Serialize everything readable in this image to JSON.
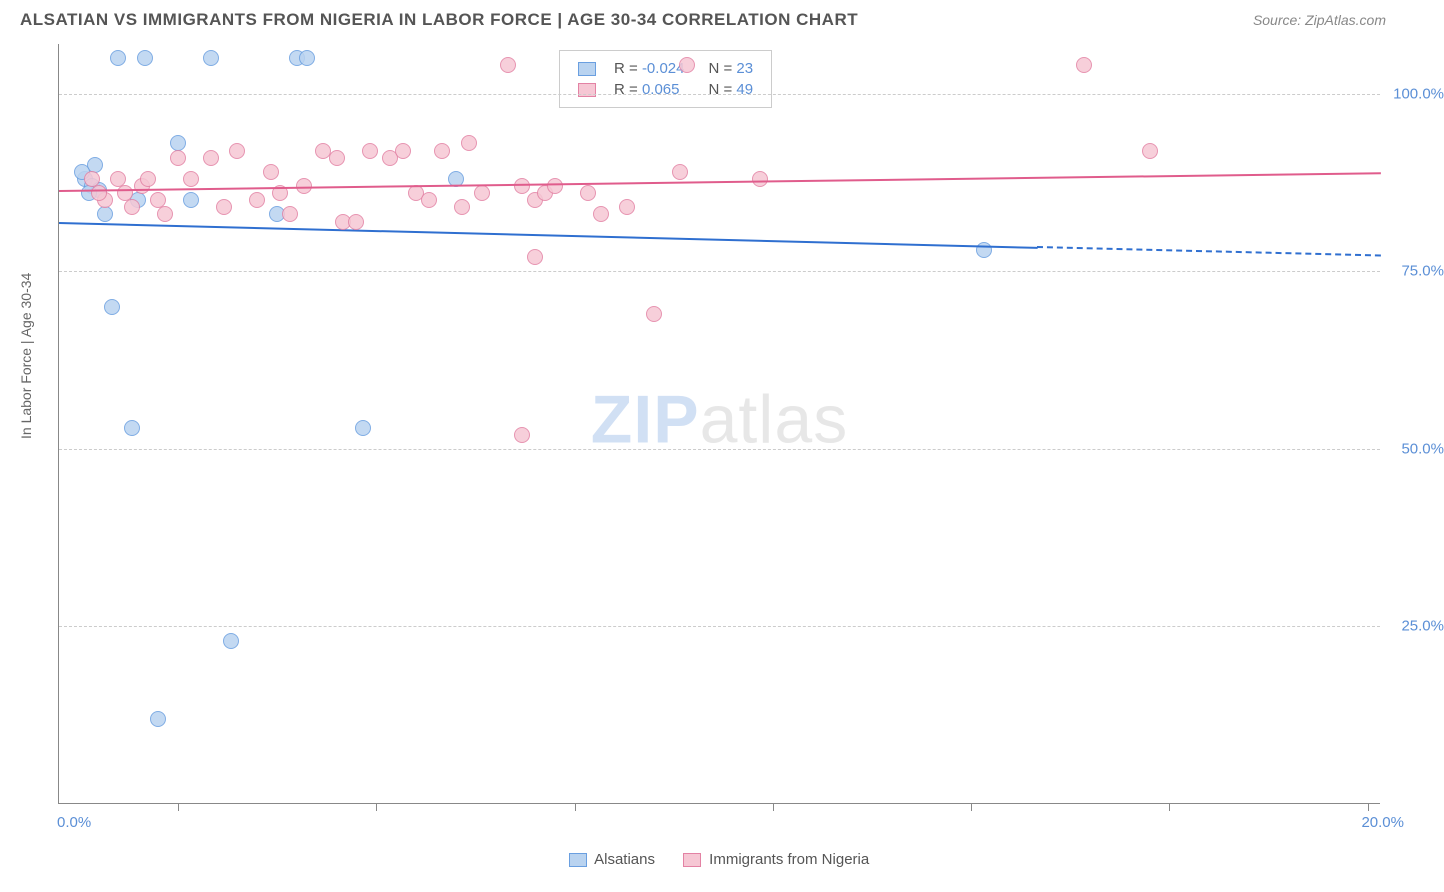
{
  "header": {
    "title": "ALSATIAN VS IMMIGRANTS FROM NIGERIA IN LABOR FORCE | AGE 30-34 CORRELATION CHART",
    "source": "Source: ZipAtlas.com"
  },
  "chart": {
    "type": "scatter",
    "ylabel": "In Labor Force | Age 30-34",
    "background_color": "#ffffff",
    "grid_color": "#cccccc",
    "axis_color": "#888888",
    "tick_label_color": "#5b8fd6",
    "label_fontsize": 14,
    "tick_fontsize": 15,
    "marker_radius": 8,
    "xlim": [
      0.0,
      20.0
    ],
    "ylim": [
      0.0,
      107.0
    ],
    "yticks": [
      25.0,
      50.0,
      75.0,
      100.0
    ],
    "ytick_labels": [
      "25.0%",
      "50.0%",
      "75.0%",
      "100.0%"
    ],
    "xtick_positions": [
      1.8,
      4.8,
      7.8,
      10.8,
      13.8,
      16.8,
      19.8
    ],
    "xaxis_end_labels": {
      "left": "0.0%",
      "right": "20.0%"
    },
    "watermark": {
      "zip": "ZIP",
      "atlas": "atlas"
    },
    "series": [
      {
        "name": "Alsatians",
        "color_fill": "#b9d3f0",
        "color_stroke": "#6a9fe0",
        "trend_color": "#2f6fd0",
        "R": "-0.024",
        "N": "23",
        "trend": {
          "x0": 0.0,
          "y0": 82.0,
          "x1": 14.8,
          "y1": 78.5,
          "x1_dash": 20.0,
          "y1_dash": 77.3
        },
        "points": [
          {
            "x": 0.4,
            "y": 88
          },
          {
            "x": 0.5,
            "y": 87
          },
          {
            "x": 0.55,
            "y": 90
          },
          {
            "x": 0.6,
            "y": 86.5
          },
          {
            "x": 0.9,
            "y": 105
          },
          {
            "x": 1.3,
            "y": 105
          },
          {
            "x": 1.8,
            "y": 93
          },
          {
            "x": 2.3,
            "y": 105
          },
          {
            "x": 3.6,
            "y": 105
          },
          {
            "x": 3.75,
            "y": 105
          },
          {
            "x": 3.3,
            "y": 83
          },
          {
            "x": 0.7,
            "y": 83
          },
          {
            "x": 6.0,
            "y": 88
          },
          {
            "x": 14.0,
            "y": 78
          },
          {
            "x": 0.8,
            "y": 70
          },
          {
            "x": 1.1,
            "y": 53
          },
          {
            "x": 4.6,
            "y": 53
          },
          {
            "x": 2.6,
            "y": 23
          },
          {
            "x": 1.5,
            "y": 12
          },
          {
            "x": 1.2,
            "y": 85
          },
          {
            "x": 2.0,
            "y": 85
          },
          {
            "x": 0.45,
            "y": 86
          },
          {
            "x": 0.35,
            "y": 89
          }
        ]
      },
      {
        "name": "Immigrants from Nigeria",
        "color_fill": "#f6c7d4",
        "color_stroke": "#e382a4",
        "trend_color": "#e05c8c",
        "R": "0.065",
        "N": "49",
        "trend": {
          "x0": 0.0,
          "y0": 86.5,
          "x1": 20.0,
          "y1": 89.0
        },
        "points": [
          {
            "x": 0.5,
            "y": 88
          },
          {
            "x": 0.7,
            "y": 85
          },
          {
            "x": 0.9,
            "y": 88
          },
          {
            "x": 1.0,
            "y": 86
          },
          {
            "x": 1.1,
            "y": 84
          },
          {
            "x": 1.25,
            "y": 87
          },
          {
            "x": 1.5,
            "y": 85
          },
          {
            "x": 1.6,
            "y": 83
          },
          {
            "x": 1.8,
            "y": 91
          },
          {
            "x": 2.0,
            "y": 88
          },
          {
            "x": 2.3,
            "y": 91
          },
          {
            "x": 2.5,
            "y": 84
          },
          {
            "x": 2.7,
            "y": 92
          },
          {
            "x": 3.0,
            "y": 85
          },
          {
            "x": 3.2,
            "y": 89
          },
          {
            "x": 3.35,
            "y": 86
          },
          {
            "x": 3.5,
            "y": 83
          },
          {
            "x": 3.7,
            "y": 87
          },
          {
            "x": 4.0,
            "y": 92
          },
          {
            "x": 4.2,
            "y": 91
          },
          {
            "x": 4.3,
            "y": 82
          },
          {
            "x": 4.5,
            "y": 82
          },
          {
            "x": 4.7,
            "y": 92
          },
          {
            "x": 5.0,
            "y": 91
          },
          {
            "x": 5.2,
            "y": 92
          },
          {
            "x": 5.4,
            "y": 86
          },
          {
            "x": 5.6,
            "y": 85
          },
          {
            "x": 5.8,
            "y": 92
          },
          {
            "x": 6.1,
            "y": 84
          },
          {
            "x": 6.2,
            "y": 93
          },
          {
            "x": 6.4,
            "y": 86
          },
          {
            "x": 6.8,
            "y": 104
          },
          {
            "x": 7.0,
            "y": 87
          },
          {
            "x": 7.2,
            "y": 85
          },
          {
            "x": 7.35,
            "y": 86
          },
          {
            "x": 7.5,
            "y": 87
          },
          {
            "x": 7.2,
            "y": 77
          },
          {
            "x": 8.0,
            "y": 86
          },
          {
            "x": 8.2,
            "y": 83
          },
          {
            "x": 8.6,
            "y": 84
          },
          {
            "x": 9.4,
            "y": 89
          },
          {
            "x": 9.5,
            "y": 104
          },
          {
            "x": 10.6,
            "y": 88
          },
          {
            "x": 9.0,
            "y": 69
          },
          {
            "x": 7.0,
            "y": 52
          },
          {
            "x": 15.5,
            "y": 104
          },
          {
            "x": 16.5,
            "y": 92
          },
          {
            "x": 1.35,
            "y": 88
          },
          {
            "x": 0.6,
            "y": 86
          }
        ]
      }
    ],
    "legend_bottom": [
      {
        "label": "Alsatians",
        "fill": "#b9d3f0",
        "stroke": "#6a9fe0"
      },
      {
        "label": "Immigrants from Nigeria",
        "fill": "#f6c7d4",
        "stroke": "#e382a4"
      }
    ]
  }
}
